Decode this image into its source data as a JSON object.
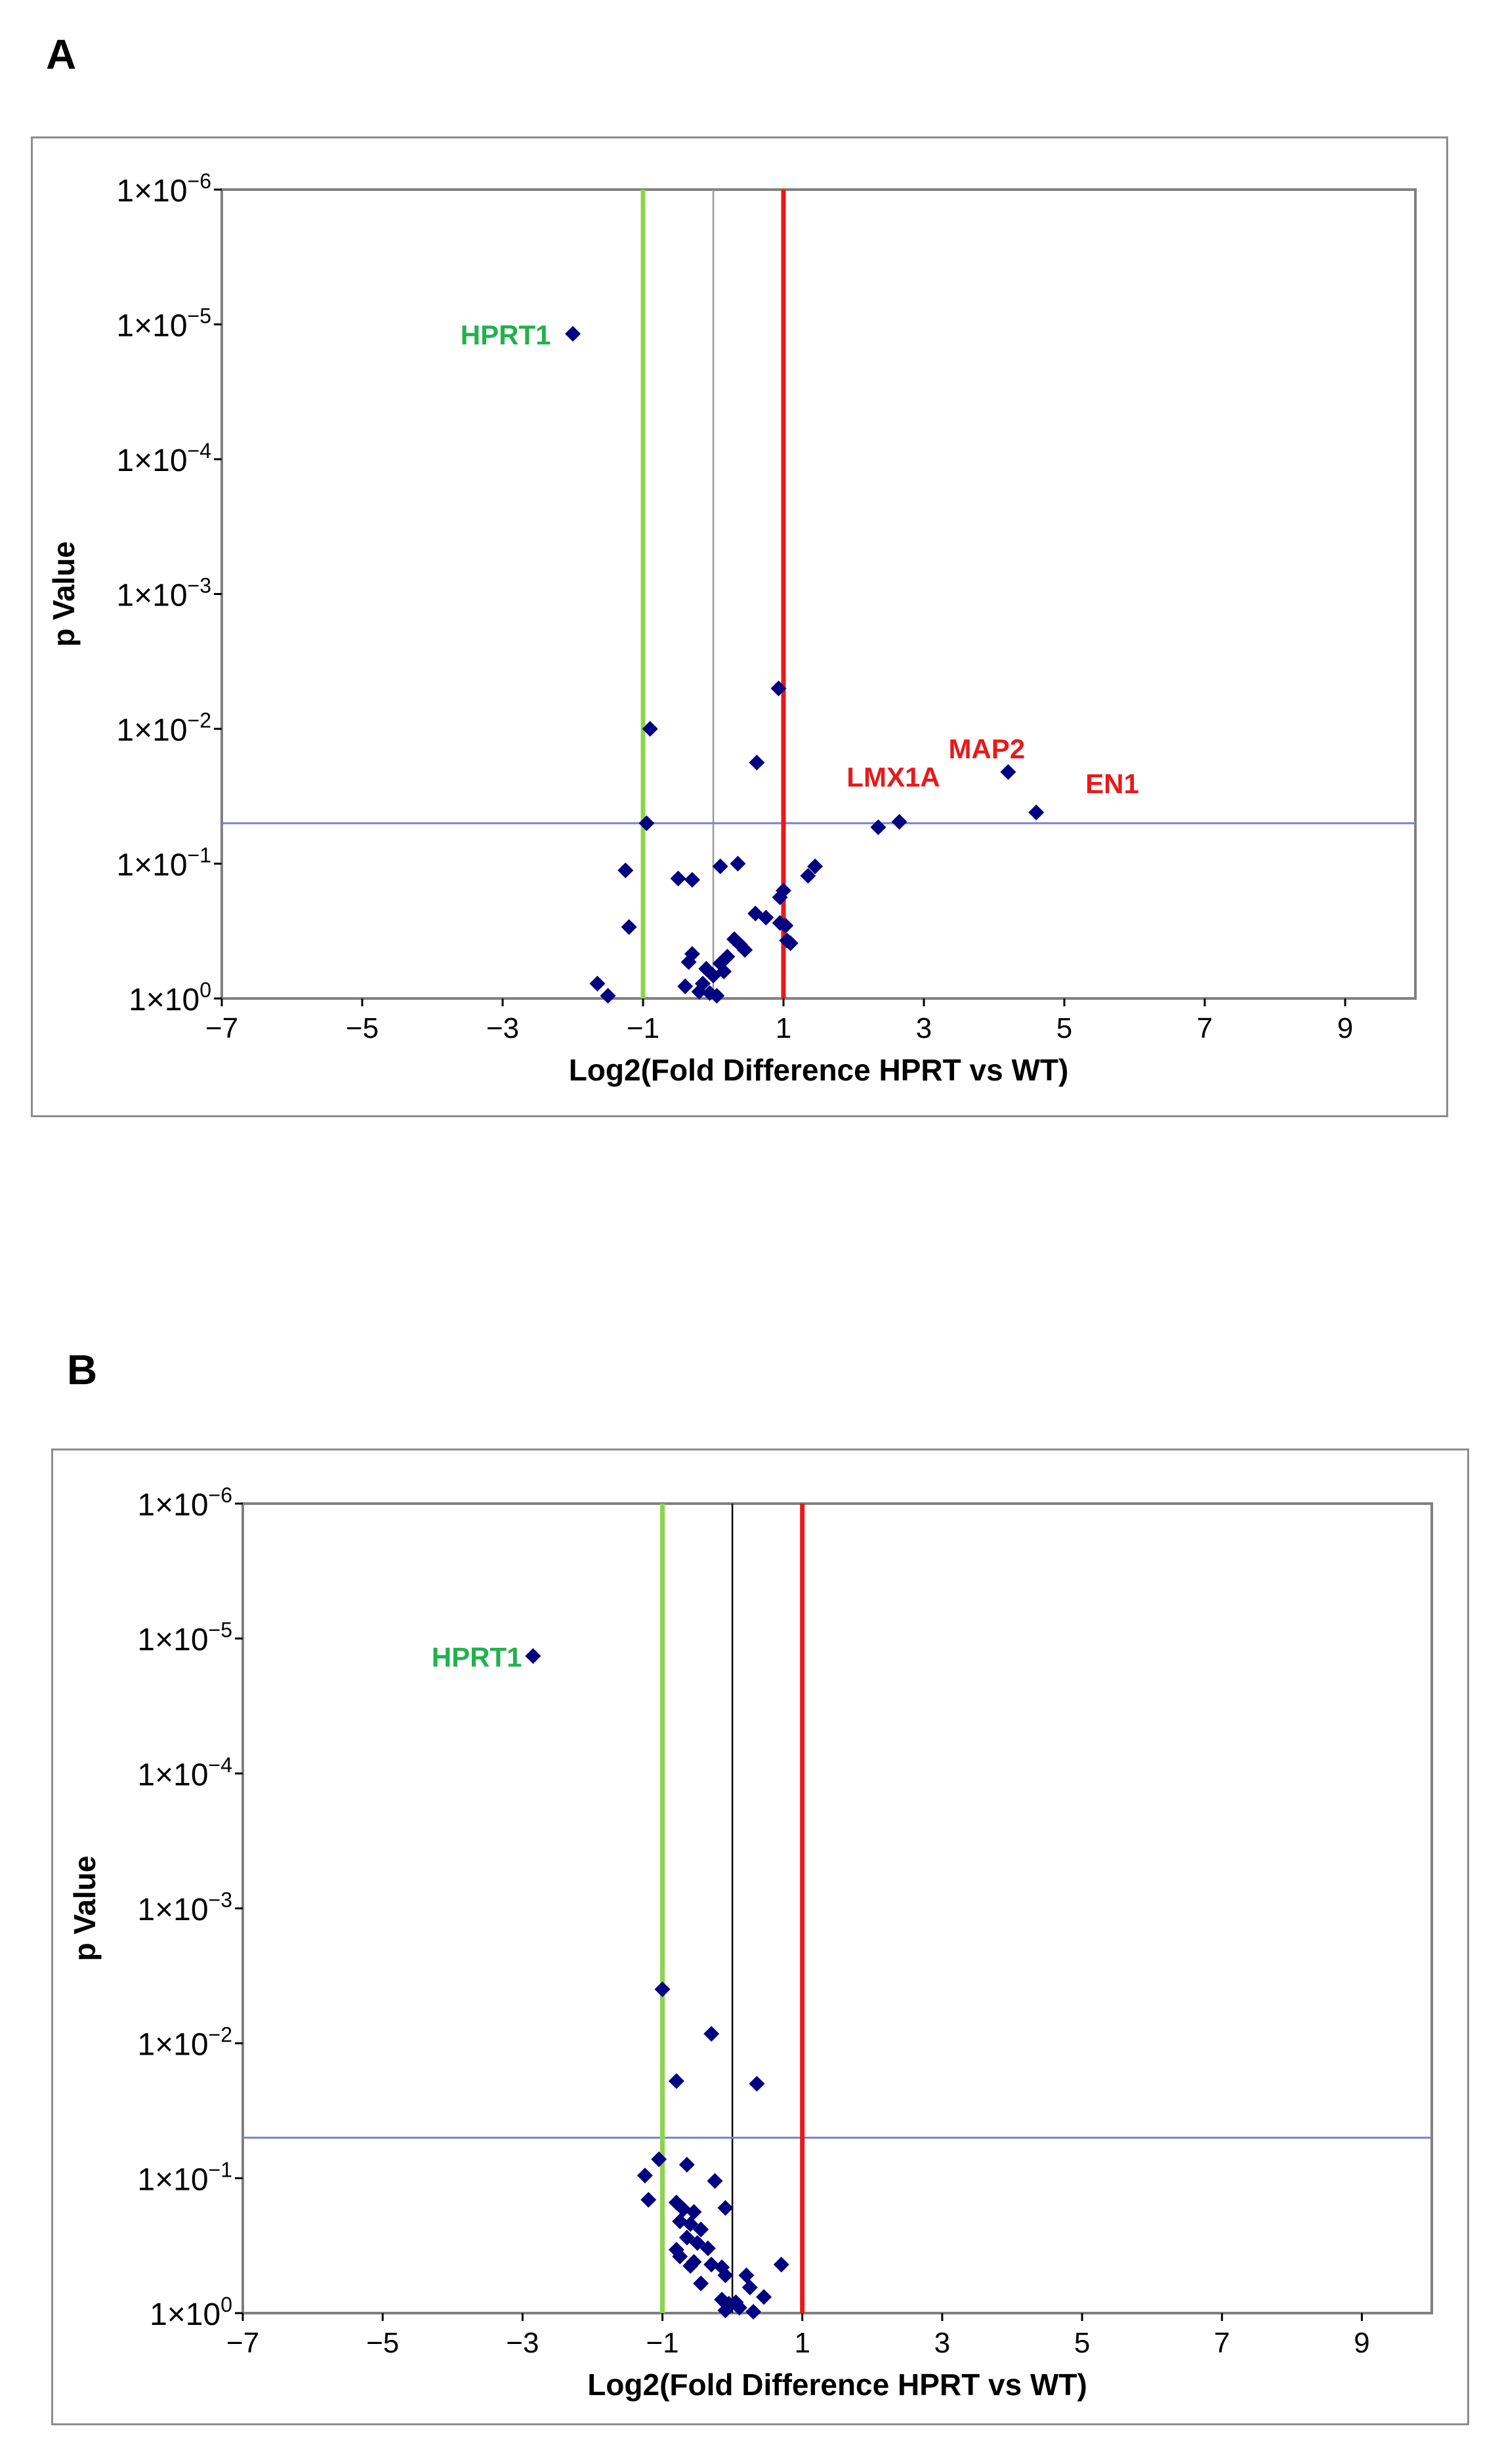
{
  "figure": {
    "panel_a_letter": "A",
    "panel_b_letter": "B"
  },
  "chart_data": [
    {
      "type": "scatter",
      "panel": "A",
      "xlabel": "Log2(Fold Difference HPRT vs WT)",
      "ylabel": "p Value",
      "xlim": [
        -7,
        10
      ],
      "xticks": [
        -7,
        -5,
        -3,
        -1,
        1,
        3,
        5,
        7,
        9
      ],
      "xtick_labels": [
        "−7",
        "−5",
        "−3",
        "−1",
        "1",
        "3",
        "5",
        "7",
        "9"
      ],
      "ylog_range": [
        0,
        -6
      ],
      "yticks": [
        0,
        -1,
        -2,
        -3,
        -4,
        -5,
        -6
      ],
      "ytick_labels": [
        {
          "base": "1×10",
          "exp": "0"
        },
        {
          "base": "1×10",
          "exp": "−1"
        },
        {
          "base": "1×10",
          "exp": "−2"
        },
        {
          "base": "1×10",
          "exp": "−3"
        },
        {
          "base": "1×10",
          "exp": "−4"
        },
        {
          "base": "1×10",
          "exp": "−5"
        },
        {
          "base": "1×10",
          "exp": "−6"
        }
      ],
      "threshold_lines": {
        "fold_down": {
          "x": -1,
          "color": "#8cd44a"
        },
        "fold_up": {
          "x": 1,
          "color": "#e8191b"
        },
        "center": {
          "x": 0,
          "color": "#9a9a9a"
        },
        "p_value": {
          "log10p": -1.3,
          "color": "#7b7fd6"
        }
      },
      "point_color": "#000080",
      "points": [
        {
          "x": -2.0,
          "y": -4.93
        },
        {
          "x": 0.93,
          "y": -2.3
        },
        {
          "x": -0.9,
          "y": -2.0
        },
        {
          "x": 0.62,
          "y": -1.75
        },
        {
          "x": 4.2,
          "y": -1.68
        },
        {
          "x": 4.6,
          "y": -1.38
        },
        {
          "x": -0.95,
          "y": -1.3
        },
        {
          "x": 2.35,
          "y": -1.27
        },
        {
          "x": 2.65,
          "y": -1.31
        },
        {
          "x": 0.35,
          "y": -1.0
        },
        {
          "x": 0.1,
          "y": -0.98
        },
        {
          "x": 1.45,
          "y": -0.98
        },
        {
          "x": -1.25,
          "y": -0.95
        },
        {
          "x": -0.5,
          "y": -0.89
        },
        {
          "x": -0.3,
          "y": -0.88
        },
        {
          "x": 1.35,
          "y": -0.91
        },
        {
          "x": 1.0,
          "y": -0.8
        },
        {
          "x": 0.95,
          "y": -0.75
        },
        {
          "x": 0.6,
          "y": -0.63
        },
        {
          "x": 0.75,
          "y": -0.6
        },
        {
          "x": 0.95,
          "y": -0.56
        },
        {
          "x": 1.03,
          "y": -0.54
        },
        {
          "x": -1.2,
          "y": -0.53
        },
        {
          "x": 1.05,
          "y": -0.43
        },
        {
          "x": 1.1,
          "y": -0.41
        },
        {
          "x": 0.3,
          "y": -0.44
        },
        {
          "x": 0.38,
          "y": -0.4
        },
        {
          "x": 0.45,
          "y": -0.36
        },
        {
          "x": -0.3,
          "y": -0.33
        },
        {
          "x": -0.35,
          "y": -0.27
        },
        {
          "x": 0.2,
          "y": -0.31
        },
        {
          "x": 0.1,
          "y": -0.26
        },
        {
          "x": -0.1,
          "y": -0.22
        },
        {
          "x": 0.0,
          "y": -0.17
        },
        {
          "x": 0.15,
          "y": -0.2
        },
        {
          "x": -0.4,
          "y": -0.09
        },
        {
          "x": -0.15,
          "y": -0.11
        },
        {
          "x": -0.05,
          "y": -0.04
        },
        {
          "x": 0.05,
          "y": -0.02
        },
        {
          "x": -1.65,
          "y": -0.11
        },
        {
          "x": -1.5,
          "y": -0.02
        },
        {
          "x": -0.2,
          "y": -0.05
        }
      ],
      "annotations": [
        {
          "text": "HPRT1",
          "x": -3.6,
          "y": -4.93,
          "color": "#22b14c"
        },
        {
          "text": "LMX1A",
          "x": 1.9,
          "y": -1.65,
          "color": "#e8191b"
        },
        {
          "text": "MAP2",
          "x": 3.35,
          "y": -1.86,
          "color": "#e8191b"
        },
        {
          "text": "EN1",
          "x": 5.3,
          "y": -1.6,
          "color": "#e8191b"
        }
      ]
    },
    {
      "type": "scatter",
      "panel": "B",
      "xlabel": "Log2(Fold Difference HPRT vs WT)",
      "ylabel": "p Value",
      "xlim": [
        -7,
        10
      ],
      "xticks": [
        -7,
        -5,
        -3,
        -1,
        1,
        3,
        5,
        7,
        9
      ],
      "xtick_labels": [
        "−7",
        "−5",
        "−3",
        "−1",
        "1",
        "3",
        "5",
        "7",
        "9"
      ],
      "ylog_range": [
        0,
        -6
      ],
      "yticks": [
        0,
        -1,
        -2,
        -3,
        -4,
        -5,
        -6
      ],
      "ytick_labels": [
        {
          "base": "1×10",
          "exp": "0"
        },
        {
          "base": "1×10",
          "exp": "−1"
        },
        {
          "base": "1×10",
          "exp": "−2"
        },
        {
          "base": "1×10",
          "exp": "−3"
        },
        {
          "base": "1×10",
          "exp": "−4"
        },
        {
          "base": "1×10",
          "exp": "−5"
        },
        {
          "base": "1×10",
          "exp": "−6"
        }
      ],
      "threshold_lines": {
        "fold_down": {
          "x": -1,
          "color": "#8cd44a"
        },
        "fold_up": {
          "x": 1,
          "color": "#e8191b"
        },
        "center": {
          "x": 0,
          "color": "#000000"
        },
        "p_value": {
          "log10p": -1.3,
          "color": "#7b7fd6"
        }
      },
      "point_color": "#000080",
      "points": [
        {
          "x": -2.85,
          "y": -4.87
        },
        {
          "x": -1.0,
          "y": -2.4
        },
        {
          "x": -0.3,
          "y": -2.07
        },
        {
          "x": -0.8,
          "y": -1.72
        },
        {
          "x": 0.35,
          "y": -1.7
        },
        {
          "x": -1.05,
          "y": -1.14
        },
        {
          "x": -0.65,
          "y": -1.1
        },
        {
          "x": -1.25,
          "y": -1.02
        },
        {
          "x": -0.25,
          "y": -0.98
        },
        {
          "x": -1.2,
          "y": -0.84
        },
        {
          "x": -0.8,
          "y": -0.82
        },
        {
          "x": -0.7,
          "y": -0.77
        },
        {
          "x": -0.55,
          "y": -0.75
        },
        {
          "x": -0.1,
          "y": -0.78
        },
        {
          "x": -0.75,
          "y": -0.68
        },
        {
          "x": -0.6,
          "y": -0.66
        },
        {
          "x": -0.45,
          "y": -0.62
        },
        {
          "x": -0.65,
          "y": -0.56
        },
        {
          "x": -0.5,
          "y": -0.52
        },
        {
          "x": -0.35,
          "y": -0.48
        },
        {
          "x": -0.8,
          "y": -0.47
        },
        {
          "x": -0.75,
          "y": -0.42
        },
        {
          "x": -0.55,
          "y": -0.38
        },
        {
          "x": -0.3,
          "y": -0.36
        },
        {
          "x": -0.15,
          "y": -0.34
        },
        {
          "x": -0.6,
          "y": -0.35
        },
        {
          "x": -0.1,
          "y": -0.28
        },
        {
          "x": 0.2,
          "y": -0.28
        },
        {
          "x": 0.7,
          "y": -0.36
        },
        {
          "x": -0.45,
          "y": -0.22
        },
        {
          "x": 0.25,
          "y": -0.19
        },
        {
          "x": 0.45,
          "y": -0.12
        },
        {
          "x": -0.15,
          "y": -0.1
        },
        {
          "x": -0.05,
          "y": -0.07
        },
        {
          "x": 0.05,
          "y": -0.08
        },
        {
          "x": 0.1,
          "y": -0.04
        },
        {
          "x": -0.1,
          "y": -0.02
        },
        {
          "x": 0.3,
          "y": -0.01
        }
      ],
      "annotations": [
        {
          "text": "HPRT1",
          "x": -4.3,
          "y": -4.87,
          "color": "#22b14c"
        }
      ]
    }
  ]
}
